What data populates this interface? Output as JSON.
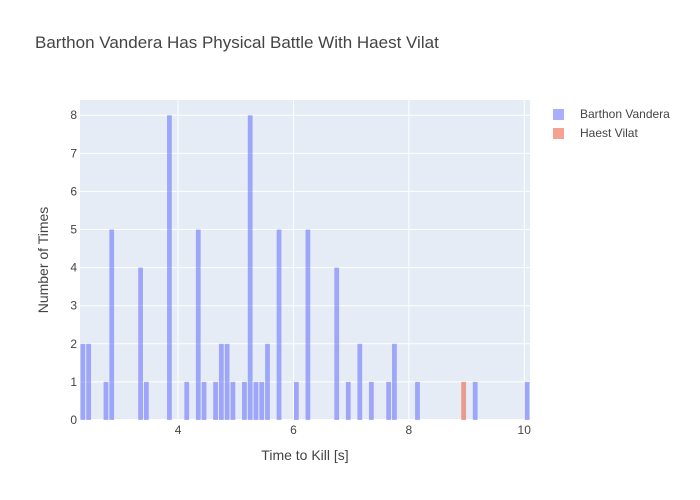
{
  "chart_data": {
    "type": "bar",
    "title": "Barthon Vandera Has Physical Battle With Haest Vilat",
    "xlabel": "Time to Kill [s]",
    "ylabel": "Number of Times",
    "xlim": [
      2.3,
      10.1
    ],
    "ylim": [
      0,
      8.4
    ],
    "x_ticks": [
      4,
      6,
      8,
      10
    ],
    "y_ticks": [
      0,
      1,
      2,
      3,
      4,
      5,
      6,
      7,
      8
    ],
    "bin_width": 0.1,
    "grid": true,
    "legend_position": "top-right",
    "series": [
      {
        "name": "Barthon Vandera",
        "color": "#636efa",
        "bins": [
          {
            "x": 2.35,
            "value": 2
          },
          {
            "x": 2.45,
            "value": 2
          },
          {
            "x": 2.75,
            "value": 1
          },
          {
            "x": 2.85,
            "value": 5
          },
          {
            "x": 3.35,
            "value": 4
          },
          {
            "x": 3.45,
            "value": 1
          },
          {
            "x": 3.85,
            "value": 8
          },
          {
            "x": 4.15,
            "value": 1
          },
          {
            "x": 4.35,
            "value": 5
          },
          {
            "x": 4.45,
            "value": 1
          },
          {
            "x": 4.65,
            "value": 1
          },
          {
            "x": 4.75,
            "value": 2
          },
          {
            "x": 4.85,
            "value": 2
          },
          {
            "x": 4.95,
            "value": 1
          },
          {
            "x": 5.15,
            "value": 1
          },
          {
            "x": 5.25,
            "value": 8
          },
          {
            "x": 5.35,
            "value": 1
          },
          {
            "x": 5.45,
            "value": 1
          },
          {
            "x": 5.55,
            "value": 2
          },
          {
            "x": 5.75,
            "value": 5
          },
          {
            "x": 6.05,
            "value": 1
          },
          {
            "x": 6.25,
            "value": 5
          },
          {
            "x": 6.75,
            "value": 4
          },
          {
            "x": 6.95,
            "value": 1
          },
          {
            "x": 7.15,
            "value": 2
          },
          {
            "x": 7.35,
            "value": 1
          },
          {
            "x": 7.65,
            "value": 1
          },
          {
            "x": 7.75,
            "value": 2
          },
          {
            "x": 8.15,
            "value": 1
          },
          {
            "x": 9.15,
            "value": 1
          },
          {
            "x": 10.05,
            "value": 1
          }
        ]
      },
      {
        "name": "Haest Vilat",
        "color": "#ef553b",
        "bins": [
          {
            "x": 8.95,
            "value": 1
          }
        ]
      }
    ]
  }
}
